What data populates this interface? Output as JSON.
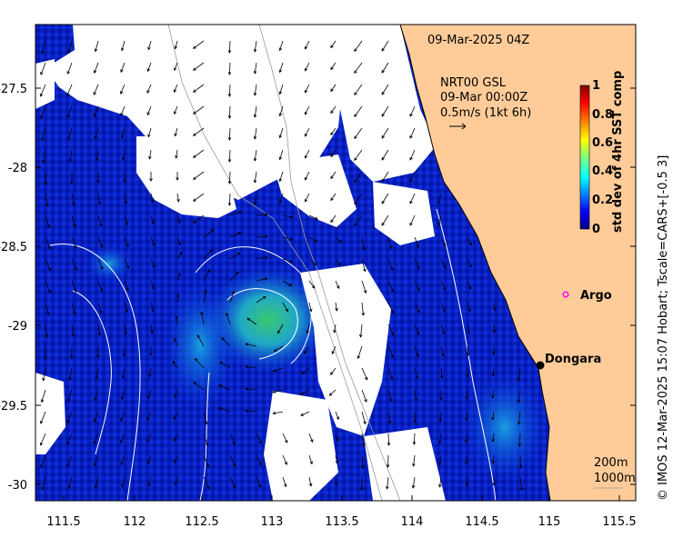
{
  "map": {
    "timestamp": "09-Mar-2025 04Z",
    "product_line1": "NRT00 GSL",
    "product_line2": "09-Mar 00:00Z",
    "vector_scale_label": "0.5m/s (1kt 6h)",
    "x_ticks": [
      "111.5",
      "112",
      "112.5",
      "113",
      "113.5",
      "114",
      "114.5",
      "115",
      "115.5"
    ],
    "y_ticks": [
      "-27.5",
      "-28",
      "-28.5",
      "-29",
      "-29.5",
      "-30"
    ],
    "colorbar": {
      "label": "std dev of 4hr SST comp",
      "ticks": [
        "0",
        "0.2",
        "0.4",
        "0.6",
        "0.8",
        "1"
      ],
      "colors": [
        "#00007f",
        "#0000ff",
        "#0080ff",
        "#00ffff",
        "#80ff80",
        "#ffff00",
        "#ff8000",
        "#ff0000",
        "#7f0000"
      ]
    },
    "places": [
      {
        "name": "Argo",
        "marker": "circle-open",
        "color": "#ff00ff"
      },
      {
        "name": "Dongara",
        "marker": "dot",
        "color": "#000000"
      }
    ],
    "isobaths": {
      "line1": "200m",
      "line2": "1000m"
    },
    "credit": "© IMOS 12-Mar-2025 15:07 Hobart; Tscale=CARS+[-0.5 3]",
    "colors": {
      "land": "#ffcc99",
      "no_data": "#ffffff",
      "sst_low": "#0000c0",
      "contour": "#ffffff"
    }
  }
}
